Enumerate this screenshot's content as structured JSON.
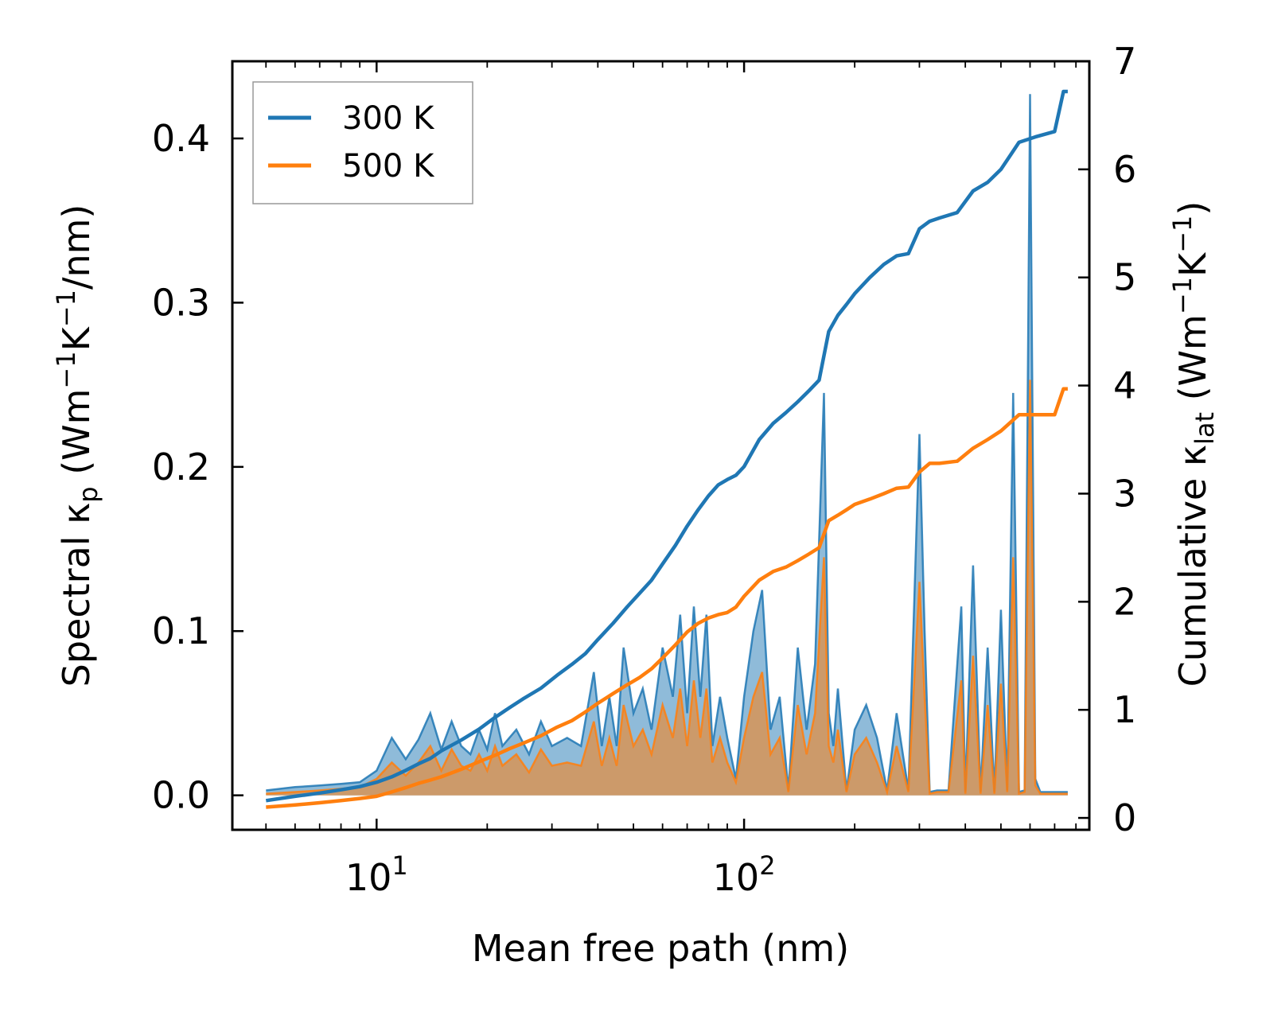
{
  "chart_data": {
    "type": "line",
    "xscale": "log",
    "xlabel": "Mean free path (nm)",
    "ylabel_left": {
      "main": "Spectral κ",
      "sub": "p",
      "open": " (Wm",
      "sup1": "−1",
      "mid": "K",
      "sup2": "−1",
      "close": "/nm)"
    },
    "ylabel_right": {
      "main": "Cumulative κ",
      "sub": "lat",
      "open": " (Wm",
      "sup1": "−1",
      "mid": "K",
      "sup2": "−1",
      "close": ")"
    },
    "xlim": [
      4.05,
      870
    ],
    "ylim_left": [
      -0.021,
      0.447
    ],
    "ylim_right": [
      -0.11,
      7.0
    ],
    "x_ticks": [
      {
        "value": 10,
        "base": "10",
        "exp": "1"
      },
      {
        "value": 100,
        "base": "10",
        "exp": "2"
      }
    ],
    "y_ticks_left": [
      "0.0",
      "0.1",
      "0.2",
      "0.3",
      "0.4"
    ],
    "y_ticks_left_values": [
      0,
      0.1,
      0.2,
      0.3,
      0.4
    ],
    "y_ticks_right": [
      "0",
      "1",
      "2",
      "3",
      "4",
      "5",
      "6",
      "7"
    ],
    "y_ticks_right_values": [
      0,
      1,
      2,
      3,
      4,
      5,
      6,
      7
    ],
    "legend": {
      "position": "top-left"
    },
    "series": [
      {
        "name": "300 K",
        "color": "#1f77b4",
        "spectral_fill": "#1f77b4",
        "cumulative": {
          "x": [
            5,
            6,
            7,
            8,
            9,
            10,
            11,
            12,
            13,
            14,
            15,
            17,
            19,
            21,
            23,
            25,
            28,
            31,
            34,
            37,
            40,
            44,
            48,
            52,
            56,
            60,
            65,
            70,
            75,
            80,
            85,
            90,
            95,
            100,
            110,
            120,
            130,
            140,
            150,
            160,
            170,
            180,
            190,
            200,
            220,
            240,
            260,
            280,
            300,
            320,
            340,
            380,
            420,
            460,
            500,
            560,
            620,
            700,
            740,
            760
          ],
          "y": [
            0.16,
            0.2,
            0.23,
            0.26,
            0.29,
            0.33,
            0.38,
            0.44,
            0.5,
            0.55,
            0.62,
            0.72,
            0.82,
            0.93,
            1.02,
            1.1,
            1.2,
            1.32,
            1.42,
            1.52,
            1.65,
            1.8,
            1.95,
            2.08,
            2.2,
            2.35,
            2.52,
            2.7,
            2.85,
            2.98,
            3.08,
            3.13,
            3.17,
            3.25,
            3.5,
            3.65,
            3.75,
            3.85,
            3.95,
            4.05,
            4.5,
            4.65,
            4.75,
            4.85,
            5.0,
            5.12,
            5.2,
            5.22,
            5.45,
            5.52,
            5.55,
            5.6,
            5.8,
            5.88,
            6.0,
            6.25,
            6.3,
            6.35,
            6.72,
            6.72
          ]
        },
        "spectral": {
          "x": [
            5,
            6,
            7,
            8,
            9,
            10,
            11,
            12,
            13,
            14,
            15,
            16,
            17,
            18,
            19,
            20,
            21,
            22,
            24,
            26,
            28,
            30,
            33,
            36,
            39,
            41,
            43,
            45,
            47,
            50,
            53,
            56,
            60,
            64,
            67,
            70,
            73,
            76,
            79,
            82,
            86,
            90,
            95,
            100,
            106,
            112,
            118,
            125,
            132,
            140,
            148,
            156,
            165,
            170,
            175,
            180,
            190,
            200,
            215,
            230,
            245,
            260,
            280,
            300,
            310,
            320,
            335,
            360,
            390,
            400,
            420,
            440,
            460,
            480,
            500,
            520,
            540,
            560,
            580,
            600,
            620,
            640,
            680,
            700,
            730,
            760
          ],
          "y": [
            0.003,
            0.005,
            0.006,
            0.007,
            0.008,
            0.015,
            0.035,
            0.022,
            0.034,
            0.05,
            0.028,
            0.045,
            0.03,
            0.025,
            0.04,
            0.028,
            0.05,
            0.03,
            0.04,
            0.025,
            0.045,
            0.03,
            0.035,
            0.03,
            0.075,
            0.03,
            0.06,
            0.03,
            0.09,
            0.05,
            0.065,
            0.04,
            0.09,
            0.06,
            0.11,
            0.05,
            0.115,
            0.06,
            0.11,
            0.03,
            0.06,
            0.035,
            0.01,
            0.06,
            0.1,
            0.125,
            0.04,
            0.06,
            0.003,
            0.09,
            0.04,
            0.08,
            0.245,
            0.05,
            0.03,
            0.065,
            0.003,
            0.04,
            0.055,
            0.035,
            0.003,
            0.05,
            0.003,
            0.22,
            0.1,
            0.002,
            0.003,
            0.003,
            0.115,
            0.002,
            0.14,
            0.002,
            0.09,
            0.002,
            0.113,
            0.003,
            0.245,
            0.002,
            0.003,
            0.427,
            0.01,
            0.002,
            0.002,
            0.002,
            0.002,
            0.002
          ]
        }
      },
      {
        "name": "500 K",
        "color": "#ff7f0e",
        "spectral_fill": "#ff7f0e",
        "cumulative": {
          "x": [
            5,
            6,
            7,
            8,
            9,
            10,
            11,
            12,
            13,
            14,
            15,
            17,
            19,
            21,
            23,
            25,
            28,
            31,
            34,
            37,
            40,
            44,
            48,
            52,
            56,
            60,
            65,
            70,
            75,
            80,
            85,
            90,
            95,
            100,
            110,
            120,
            130,
            140,
            150,
            160,
            170,
            180,
            190,
            200,
            220,
            240,
            260,
            280,
            300,
            320,
            340,
            380,
            420,
            460,
            500,
            560,
            620,
            700,
            740,
            760
          ],
          "y": [
            0.1,
            0.12,
            0.14,
            0.16,
            0.18,
            0.2,
            0.24,
            0.28,
            0.32,
            0.35,
            0.38,
            0.45,
            0.52,
            0.58,
            0.64,
            0.69,
            0.76,
            0.84,
            0.9,
            0.98,
            1.06,
            1.15,
            1.23,
            1.3,
            1.38,
            1.48,
            1.6,
            1.72,
            1.8,
            1.85,
            1.88,
            1.9,
            1.95,
            2.05,
            2.2,
            2.28,
            2.32,
            2.38,
            2.44,
            2.5,
            2.75,
            2.8,
            2.85,
            2.9,
            2.95,
            3.0,
            3.05,
            3.06,
            3.2,
            3.28,
            3.28,
            3.3,
            3.42,
            3.5,
            3.58,
            3.73,
            3.73,
            3.73,
            3.97,
            3.97
          ]
        },
        "spectral": {
          "x": [
            5,
            6,
            7,
            8,
            9,
            10,
            11,
            12,
            13,
            14,
            15,
            16,
            17,
            18,
            19,
            20,
            21,
            22,
            24,
            26,
            28,
            30,
            33,
            36,
            39,
            41,
            43,
            45,
            47,
            50,
            53,
            56,
            60,
            64,
            67,
            70,
            73,
            76,
            79,
            82,
            86,
            90,
            95,
            100,
            106,
            112,
            118,
            125,
            132,
            140,
            148,
            156,
            165,
            170,
            175,
            180,
            190,
            200,
            215,
            230,
            245,
            260,
            280,
            300,
            310,
            320,
            335,
            360,
            390,
            400,
            420,
            440,
            460,
            480,
            500,
            520,
            540,
            560,
            580,
            600,
            620,
            640,
            680,
            700,
            730,
            760
          ],
          "y": [
            0.001,
            0.002,
            0.003,
            0.004,
            0.005,
            0.01,
            0.02,
            0.012,
            0.02,
            0.03,
            0.015,
            0.028,
            0.018,
            0.015,
            0.025,
            0.015,
            0.03,
            0.018,
            0.025,
            0.014,
            0.028,
            0.018,
            0.02,
            0.018,
            0.045,
            0.018,
            0.035,
            0.018,
            0.055,
            0.03,
            0.04,
            0.025,
            0.055,
            0.035,
            0.065,
            0.03,
            0.07,
            0.035,
            0.065,
            0.02,
            0.035,
            0.02,
            0.008,
            0.035,
            0.06,
            0.075,
            0.025,
            0.035,
            0.002,
            0.055,
            0.025,
            0.05,
            0.145,
            0.03,
            0.02,
            0.04,
            0.002,
            0.025,
            0.035,
            0.02,
            0.002,
            0.03,
            0.002,
            0.13,
            0.06,
            0.001,
            0.002,
            0.002,
            0.07,
            0.001,
            0.085,
            0.001,
            0.055,
            0.001,
            0.068,
            0.002,
            0.145,
            0.001,
            0.002,
            0.253,
            0.006,
            0.001,
            0.001,
            0.001,
            0.001,
            0.001
          ]
        }
      }
    ]
  }
}
